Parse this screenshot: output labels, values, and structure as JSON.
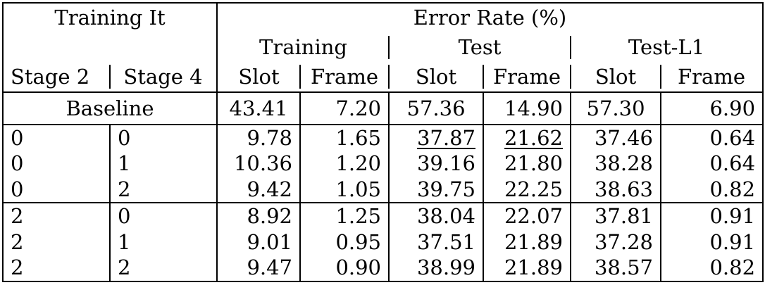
{
  "header": {
    "training_it": "Training It",
    "error_rate": "Error Rate (%)",
    "groups": [
      "Training",
      "Test",
      "Test-L1"
    ],
    "stage2": "Stage 2",
    "stage4": "Stage 4",
    "slot": "Slot",
    "frame": "Frame"
  },
  "baseline": {
    "label": "Baseline",
    "values": [
      "43.41",
      "7.20",
      "57.36",
      "14.90",
      "57.30",
      "6.90"
    ]
  },
  "rows": [
    {
      "s2": "0",
      "s4": "0",
      "values": [
        "9.78",
        "1.65",
        "37.87",
        "21.62",
        "37.46",
        "0.64"
      ]
    },
    {
      "s2": "0",
      "s4": "1",
      "values": [
        "10.36",
        "1.20",
        "39.16",
        "21.80",
        "38.28",
        "0.64"
      ]
    },
    {
      "s2": "0",
      "s4": "2",
      "values": [
        "9.42",
        "1.05",
        "39.75",
        "22.25",
        "38.63",
        "0.82"
      ]
    },
    {
      "s2": "2",
      "s4": "0",
      "values": [
        "8.92",
        "1.25",
        "38.04",
        "22.07",
        "37.81",
        "0.91"
      ]
    },
    {
      "s2": "2",
      "s4": "1",
      "values": [
        "9.01",
        "0.95",
        "37.51",
        "21.89",
        "37.28",
        "0.91"
      ]
    },
    {
      "s2": "2",
      "s4": "2",
      "values": [
        "9.47",
        "0.90",
        "38.99",
        "21.89",
        "38.57",
        "0.82"
      ]
    }
  ]
}
